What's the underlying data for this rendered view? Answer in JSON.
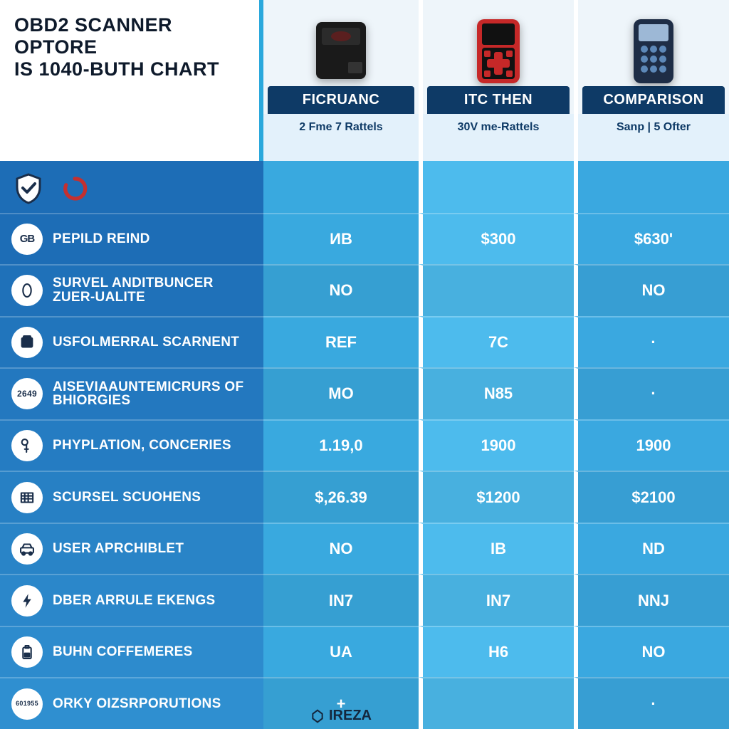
{
  "title_line1": "OBD2 SCANNER OPTORE",
  "title_line2": "IS 1040-BUTH CHART",
  "brand_footer": "IREZA",
  "colors": {
    "left_col_gradient_top": "#1d6db6",
    "left_col_gradient_bottom": "#2f8fd0",
    "product_header_bg": "#0e3a66",
    "sub_header_bg": "#e3f1fb",
    "value_col1": "#39a9df",
    "value_col2": "#4dbbed",
    "value_col3": "#3aa8e0",
    "row_alt_darken": "rgba(0,0,0,0.06)",
    "divider": "#ffffff"
  },
  "products": [
    {
      "name": "FICRUANC",
      "subtitle": "2 Fme 7 Rattels",
      "device": "black"
    },
    {
      "name": "ITC THEN",
      "subtitle": "30V me-Rattels",
      "device": "red"
    },
    {
      "name": "COMPARISON",
      "subtitle": "Sanp | 5 Ofter",
      "device": "blue"
    }
  ],
  "header_icons": [
    "shield-check",
    "loop-red"
  ],
  "features": [
    {
      "icon": "gb",
      "label": "PEPILD REIND"
    },
    {
      "icon": "oval",
      "label": "SURVEL ANDITBUNCER ZUER-UALITE"
    },
    {
      "icon": "card",
      "label": "USFOLMERRAL SCARNENT"
    },
    {
      "icon": "n2649",
      "label": "AISEVIAAUNTEMICRURS OF BHIORGIES"
    },
    {
      "icon": "key",
      "label": "PHYPLATION, CONCERIES"
    },
    {
      "icon": "grid",
      "label": "SCURSEL SCUOHENS"
    },
    {
      "icon": "car",
      "label": "USER APRCHIBLET"
    },
    {
      "icon": "bolt",
      "label": "DBER ARRULE EKENGS"
    },
    {
      "icon": "batt",
      "label": "BUHN COFFEMERES"
    },
    {
      "icon": "n601955",
      "label": "ORKY OIZSRPORUTIONS"
    }
  ],
  "values": [
    [
      "ИB",
      "$300",
      "$630'"
    ],
    [
      "NO",
      "",
      "NO"
    ],
    [
      "REF",
      "7C",
      "·"
    ],
    [
      "MO",
      "N85",
      "·"
    ],
    [
      "1.19,0",
      "1900",
      "1900"
    ],
    [
      "$,26.39",
      "$1200",
      "$2100"
    ],
    [
      "NO",
      "IB",
      "ND"
    ],
    [
      "IN7",
      "IN7",
      "NNJ"
    ],
    [
      "UA",
      "H6",
      "NO"
    ],
    [
      "+",
      "",
      "·"
    ]
  ]
}
